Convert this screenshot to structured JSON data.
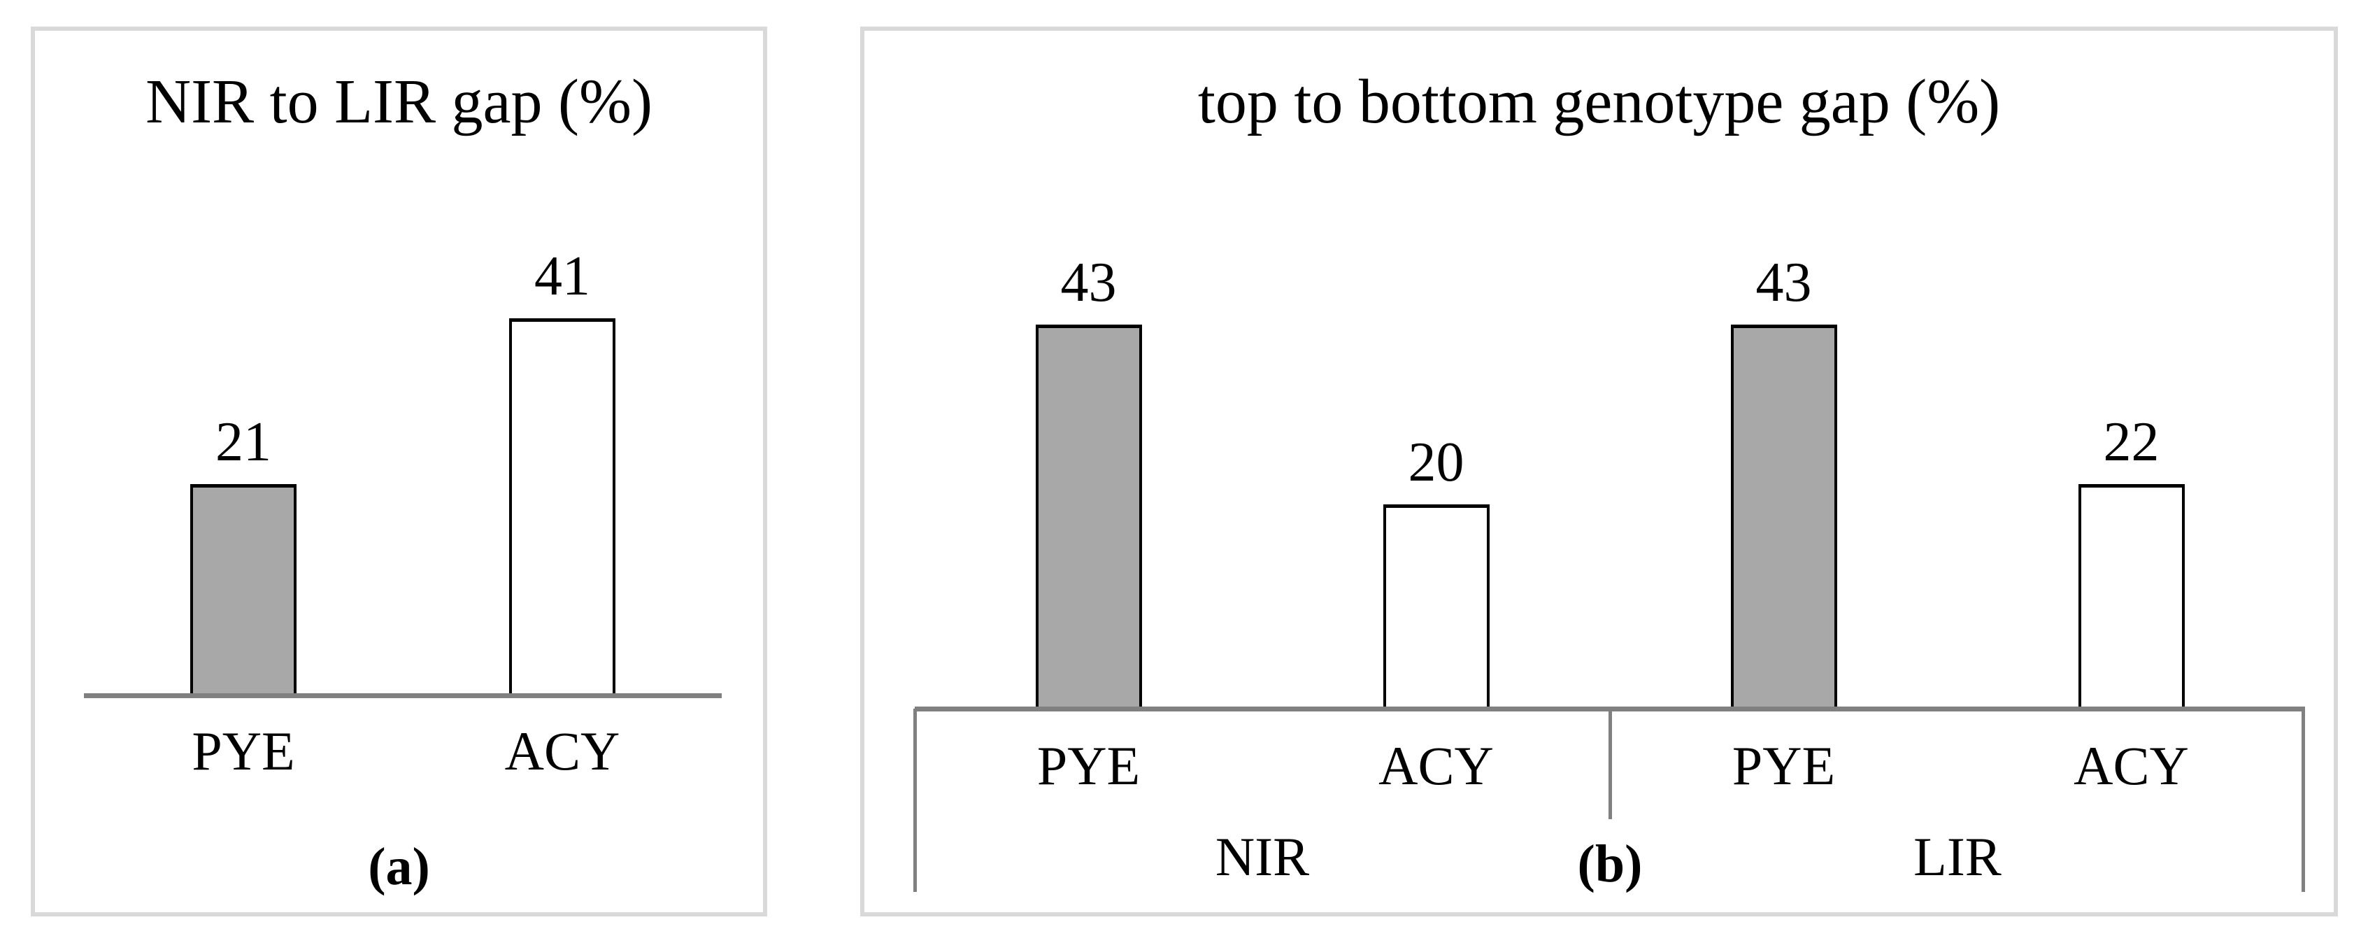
{
  "page": {
    "background": "#ffffff",
    "panel_border_color": "#d9d9d9"
  },
  "figure": {
    "panel_a_caption": "(a)",
    "panel_b_caption": "(b)"
  },
  "chart_data": [
    {
      "type": "bar",
      "title": "NIR to LIR gap (%)",
      "categories": [
        "PYE",
        "ACY"
      ],
      "values": [
        21,
        41
      ],
      "data_labels": [
        "21",
        "41"
      ],
      "bar_colors": [
        "#a8a8a8",
        "#ffffff"
      ],
      "bar_outline_color": "#000000",
      "axis_color": "#808080",
      "ylim": [
        0,
        45
      ],
      "grid": false,
      "legend": "none",
      "caption": "(a)"
    },
    {
      "type": "bar",
      "title": "top to bottom genotype gap (%)",
      "categories": [
        "PYE",
        "ACY",
        "PYE",
        "ACY"
      ],
      "group_labels": [
        "NIR",
        "LIR"
      ],
      "values": [
        43,
        20,
        43,
        22
      ],
      "data_labels": [
        "43",
        "20",
        "43",
        "22"
      ],
      "bar_colors": [
        "#a8a8a8",
        "#ffffff",
        "#a8a8a8",
        "#ffffff"
      ],
      "bar_outline_color": "#000000",
      "axis_color": "#808080",
      "ylim": [
        0,
        45
      ],
      "grid": false,
      "legend": "none",
      "caption": "(b)"
    }
  ]
}
